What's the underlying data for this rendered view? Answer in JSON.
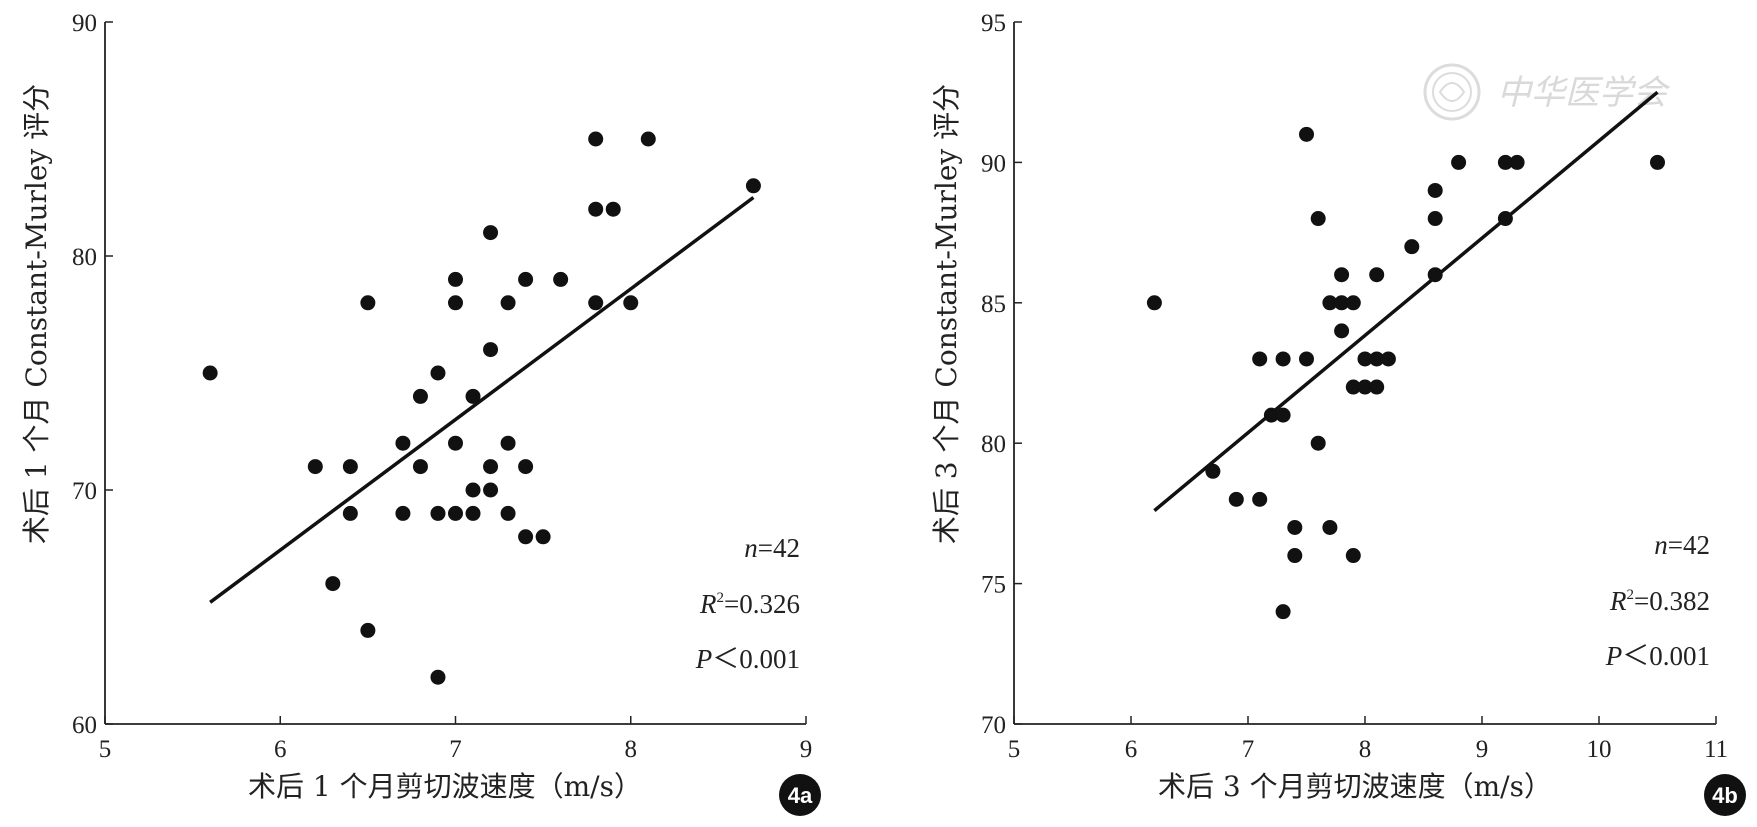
{
  "chart_data": [
    {
      "id": "4a",
      "type": "scatter",
      "panel_label": "4a",
      "xlabel": "术后 1 个月剪切波速度（m/s）",
      "ylabel": "术后 1 个月 Constant-Murley 评分",
      "xlim": [
        5,
        9
      ],
      "ylim": [
        60,
        90
      ],
      "xticks": [
        5,
        6,
        7,
        8,
        9
      ],
      "yticks": [
        60,
        70,
        80,
        90
      ],
      "grid": false,
      "points": [
        [
          5.6,
          75
        ],
        [
          6.2,
          71
        ],
        [
          6.3,
          66
        ],
        [
          6.4,
          71
        ],
        [
          6.4,
          69
        ],
        [
          6.5,
          78
        ],
        [
          6.5,
          64
        ],
        [
          6.7,
          72
        ],
        [
          6.7,
          69
        ],
        [
          6.8,
          74
        ],
        [
          6.8,
          71
        ],
        [
          6.9,
          75
        ],
        [
          6.9,
          69
        ],
        [
          6.9,
          62
        ],
        [
          7.0,
          79
        ],
        [
          7.0,
          78
        ],
        [
          7.0,
          72
        ],
        [
          7.0,
          69
        ],
        [
          7.1,
          74
        ],
        [
          7.1,
          70
        ],
        [
          7.1,
          69
        ],
        [
          7.2,
          81
        ],
        [
          7.2,
          76
        ],
        [
          7.2,
          71
        ],
        [
          7.2,
          70
        ],
        [
          7.3,
          78
        ],
        [
          7.3,
          72
        ],
        [
          7.3,
          69
        ],
        [
          7.4,
          79
        ],
        [
          7.4,
          71
        ],
        [
          7.4,
          68
        ],
        [
          7.5,
          68
        ],
        [
          7.6,
          79
        ],
        [
          7.8,
          85
        ],
        [
          7.8,
          82
        ],
        [
          7.8,
          78
        ],
        [
          7.9,
          82
        ],
        [
          8.0,
          78
        ],
        [
          8.1,
          85
        ],
        [
          8.7,
          83
        ]
      ],
      "fit_line": {
        "x": [
          5.6,
          8.7
        ],
        "y": [
          65.2,
          82.5
        ]
      },
      "stats": {
        "n_label": "n",
        "n_value": "=42",
        "r2_label": "R",
        "r2_sup": "2",
        "r2_value": "=0.326",
        "p_label": "P",
        "p_value": "＜0.001"
      }
    },
    {
      "id": "4b",
      "type": "scatter",
      "panel_label": "4b",
      "xlabel": "术后 3 个月剪切波速度（m/s）",
      "ylabel": "术后 3 个月 Constant-Murley 评分",
      "xlim": [
        5,
        11
      ],
      "ylim": [
        70,
        95
      ],
      "xticks": [
        5,
        6,
        7,
        8,
        9,
        10,
        11
      ],
      "yticks": [
        70,
        75,
        80,
        85,
        90,
        95
      ],
      "grid": false,
      "points": [
        [
          6.2,
          85
        ],
        [
          6.7,
          79
        ],
        [
          6.9,
          78
        ],
        [
          7.1,
          83
        ],
        [
          7.1,
          78
        ],
        [
          7.2,
          81
        ],
        [
          7.3,
          83
        ],
        [
          7.3,
          81
        ],
        [
          7.3,
          74
        ],
        [
          7.4,
          77
        ],
        [
          7.4,
          76
        ],
        [
          7.5,
          91
        ],
        [
          7.5,
          83
        ],
        [
          7.6,
          88
        ],
        [
          7.6,
          80
        ],
        [
          7.7,
          85
        ],
        [
          7.7,
          77
        ],
        [
          7.8,
          86
        ],
        [
          7.8,
          85
        ],
        [
          7.8,
          84
        ],
        [
          7.9,
          85
        ],
        [
          7.9,
          82
        ],
        [
          7.9,
          76
        ],
        [
          8.0,
          83
        ],
        [
          8.0,
          82
        ],
        [
          8.1,
          86
        ],
        [
          8.1,
          83
        ],
        [
          8.1,
          82
        ],
        [
          8.2,
          83
        ],
        [
          8.4,
          87
        ],
        [
          8.6,
          89
        ],
        [
          8.6,
          88
        ],
        [
          8.6,
          86
        ],
        [
          8.8,
          90
        ],
        [
          9.2,
          90
        ],
        [
          9.2,
          88
        ],
        [
          9.3,
          90
        ],
        [
          10.5,
          90
        ]
      ],
      "fit_line": {
        "x": [
          6.2,
          10.5
        ],
        "y": [
          77.6,
          92.5
        ]
      },
      "stats": {
        "n_label": "n",
        "n_value": "=42",
        "r2_label": "R",
        "r2_sup": "2",
        "r2_value": "=0.382",
        "p_label": "P",
        "p_value": "＜0.001"
      }
    }
  ],
  "watermark": {
    "text": "中华医学会"
  },
  "colors": {
    "points": "#111111",
    "line": "#111111",
    "axis": "#222222",
    "badge": "#111111"
  }
}
